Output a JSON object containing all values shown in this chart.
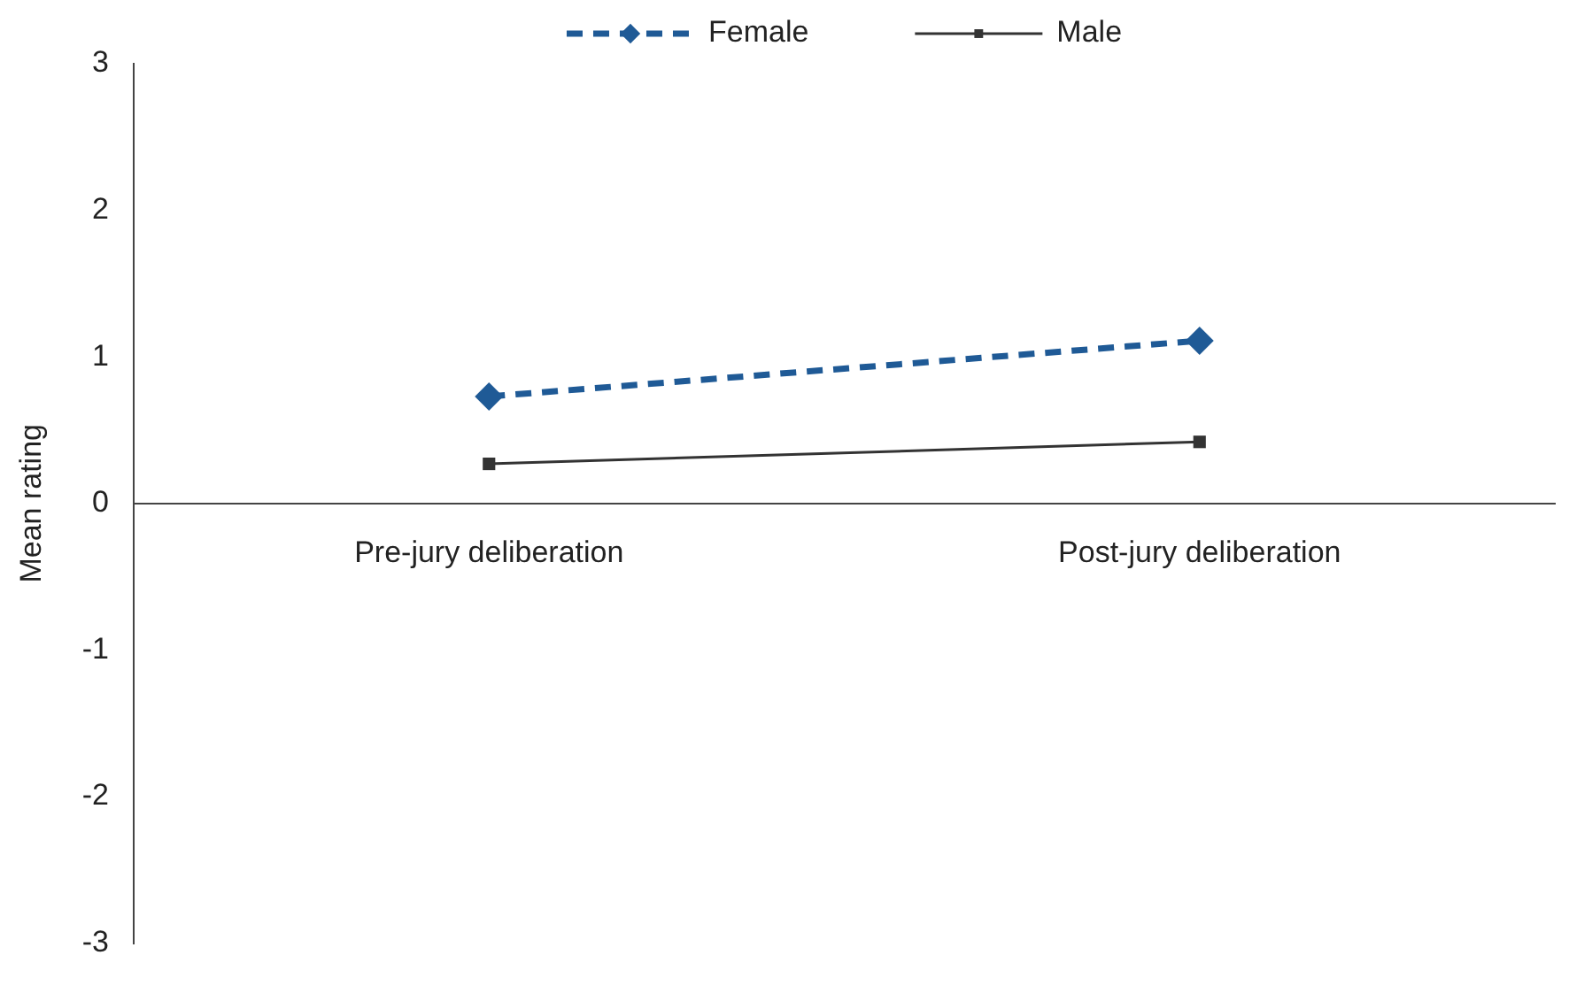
{
  "chart_data": {
    "type": "line",
    "ylabel": "Mean rating",
    "categories": [
      "Pre-jury deliberation",
      "Post-jury deliberation"
    ],
    "series": [
      {
        "name": "Female",
        "color": "#1f5a96",
        "values": [
          0.73,
          1.11
        ],
        "marker": "diamond",
        "line_style": "dashed"
      },
      {
        "name": "Male",
        "color": "#333333",
        "values": [
          0.27,
          0.42
        ],
        "marker": "square",
        "line_style": "solid"
      }
    ],
    "ylim": [
      -3,
      3
    ],
    "yticks": [
      -3,
      -2,
      -1,
      0,
      1,
      2,
      3
    ],
    "grid": false,
    "legend": "top"
  }
}
